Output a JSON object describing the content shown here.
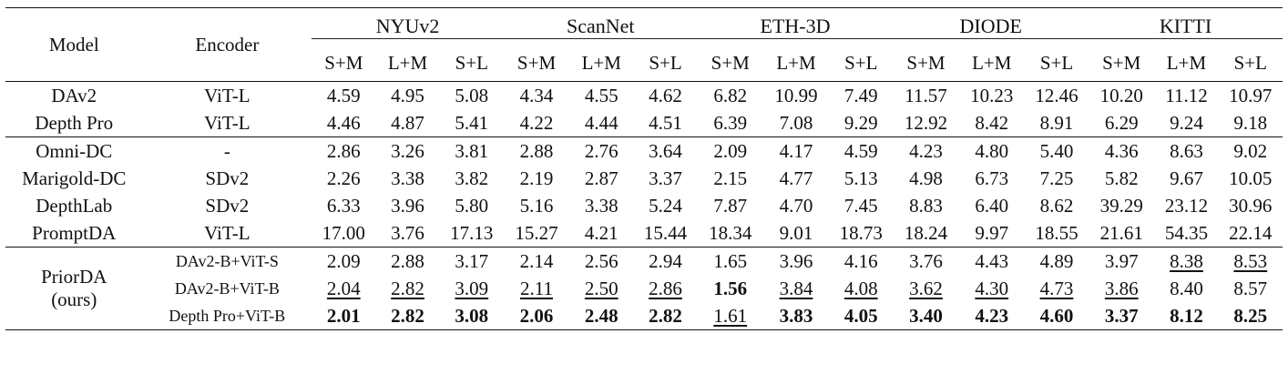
{
  "columns": {
    "model": "Model",
    "encoder": "Encoder",
    "datasets": [
      "NYUv2",
      "ScanNet",
      "ETH-3D",
      "DIODE",
      "KITTI"
    ],
    "settings": [
      "S+M",
      "L+M",
      "S+L"
    ]
  },
  "groups": [
    {
      "rows": [
        {
          "model": "DAv2",
          "encoder": "ViT-L",
          "values": [
            "4.59",
            "4.95",
            "5.08",
            "4.34",
            "4.55",
            "4.62",
            "6.82",
            "10.99",
            "7.49",
            "11.57",
            "10.23",
            "12.46",
            "10.20",
            "11.12",
            "10.97"
          ]
        },
        {
          "model": "Depth Pro",
          "encoder": "ViT-L",
          "values": [
            "4.46",
            "4.87",
            "5.41",
            "4.22",
            "4.44",
            "4.51",
            "6.39",
            "7.08",
            "9.29",
            "12.92",
            "8.42",
            "8.91",
            "6.29",
            "9.24",
            "9.18"
          ]
        }
      ]
    },
    {
      "rows": [
        {
          "model": "Omni-DC",
          "encoder": "-",
          "values": [
            "2.86",
            "3.26",
            "3.81",
            "2.88",
            "2.76",
            "3.64",
            "2.09",
            "4.17",
            "4.59",
            "4.23",
            "4.80",
            "5.40",
            "4.36",
            "8.63",
            "9.02"
          ]
        },
        {
          "model": "Marigold-DC",
          "encoder": "SDv2",
          "values": [
            "2.26",
            "3.38",
            "3.82",
            "2.19",
            "2.87",
            "3.37",
            "2.15",
            "4.77",
            "5.13",
            "4.98",
            "6.73",
            "7.25",
            "5.82",
            "9.67",
            "10.05"
          ]
        },
        {
          "model": "DepthLab",
          "encoder": "SDv2",
          "values": [
            "6.33",
            "3.96",
            "5.80",
            "5.16",
            "3.38",
            "5.24",
            "7.87",
            "4.70",
            "7.45",
            "8.83",
            "6.40",
            "8.62",
            "39.29",
            "23.12",
            "30.96"
          ]
        },
        {
          "model": "PromptDA",
          "encoder": "ViT-L",
          "values": [
            "17.00",
            "3.76",
            "17.13",
            "15.27",
            "4.21",
            "15.44",
            "18.34",
            "9.01",
            "18.73",
            "18.24",
            "9.97",
            "18.55",
            "21.61",
            "54.35",
            "22.14"
          ]
        }
      ]
    },
    {
      "model_line1": "PriorDA",
      "model_line2": "(ours)",
      "rows": [
        {
          "encoder": "DAv2-B+ViT-S",
          "values": [
            "2.09",
            "2.88",
            "3.17",
            "2.14",
            "2.56",
            "2.94",
            "1.65",
            "3.96",
            "4.16",
            "3.76",
            "4.43",
            "4.89",
            "3.97",
            "8.38",
            "8.53"
          ]
        },
        {
          "encoder": "DAv2-B+ViT-B",
          "values": [
            "2.04",
            "2.82",
            "3.09",
            "2.11",
            "2.50",
            "2.86",
            "1.56",
            "3.84",
            "4.08",
            "3.62",
            "4.30",
            "4.73",
            "3.86",
            "8.40",
            "8.57"
          ]
        },
        {
          "encoder": "Depth Pro+ViT-B",
          "values": [
            "2.01",
            "2.82",
            "3.08",
            "2.06",
            "2.48",
            "2.82",
            "1.61",
            "3.83",
            "4.05",
            "3.40",
            "4.23",
            "4.60",
            "3.37",
            "8.12",
            "8.25"
          ]
        }
      ]
    }
  ],
  "emphasis": {
    "bold": [
      [
        2,
        2,
        0
      ],
      [
        2,
        2,
        1
      ],
      [
        2,
        2,
        2
      ],
      [
        2,
        2,
        3
      ],
      [
        2,
        2,
        4
      ],
      [
        2,
        2,
        5
      ],
      [
        2,
        1,
        6
      ],
      [
        2,
        2,
        7
      ],
      [
        2,
        2,
        8
      ],
      [
        2,
        2,
        9
      ],
      [
        2,
        2,
        10
      ],
      [
        2,
        2,
        11
      ],
      [
        2,
        2,
        12
      ],
      [
        2,
        2,
        13
      ],
      [
        2,
        2,
        14
      ]
    ],
    "underline": [
      [
        2,
        1,
        0
      ],
      [
        2,
        1,
        1
      ],
      [
        2,
        1,
        2
      ],
      [
        2,
        1,
        3
      ],
      [
        2,
        1,
        4
      ],
      [
        2,
        1,
        5
      ],
      [
        2,
        2,
        6
      ],
      [
        2,
        1,
        7
      ],
      [
        2,
        1,
        8
      ],
      [
        2,
        1,
        9
      ],
      [
        2,
        1,
        10
      ],
      [
        2,
        1,
        11
      ],
      [
        2,
        1,
        12
      ],
      [
        2,
        0,
        13
      ],
      [
        2,
        0,
        14
      ]
    ]
  }
}
